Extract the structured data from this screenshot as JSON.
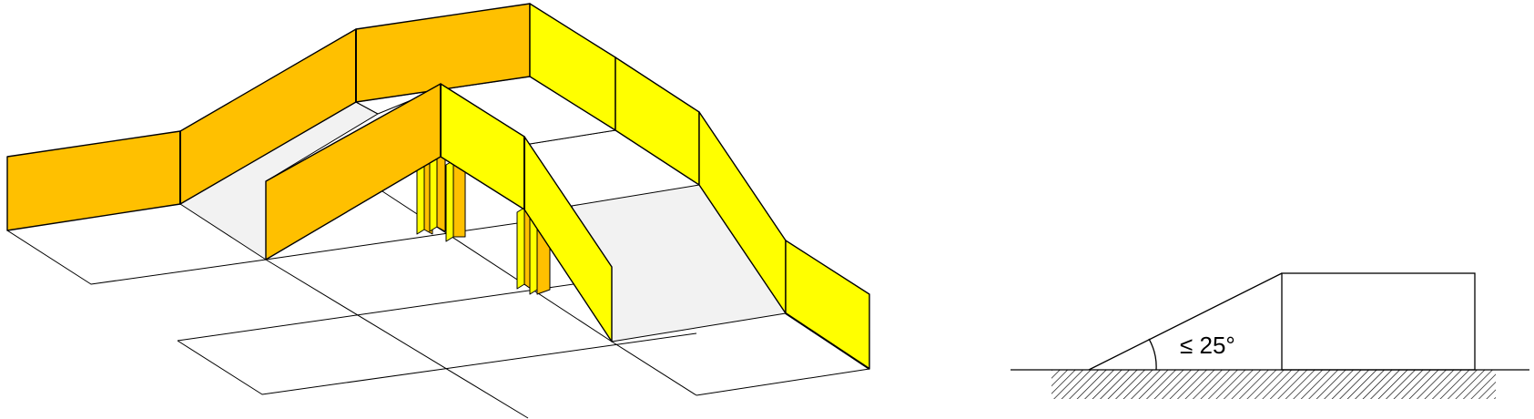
{
  "diagram": {
    "colors": {
      "wall_dark": "#FFC000",
      "wall_light": "#FFFF00",
      "floor_shade": "#F2F2F2",
      "line": "#000000",
      "background": "#FFFFFF"
    },
    "ramp_section": {
      "angle_label": "≤ 25°"
    }
  }
}
